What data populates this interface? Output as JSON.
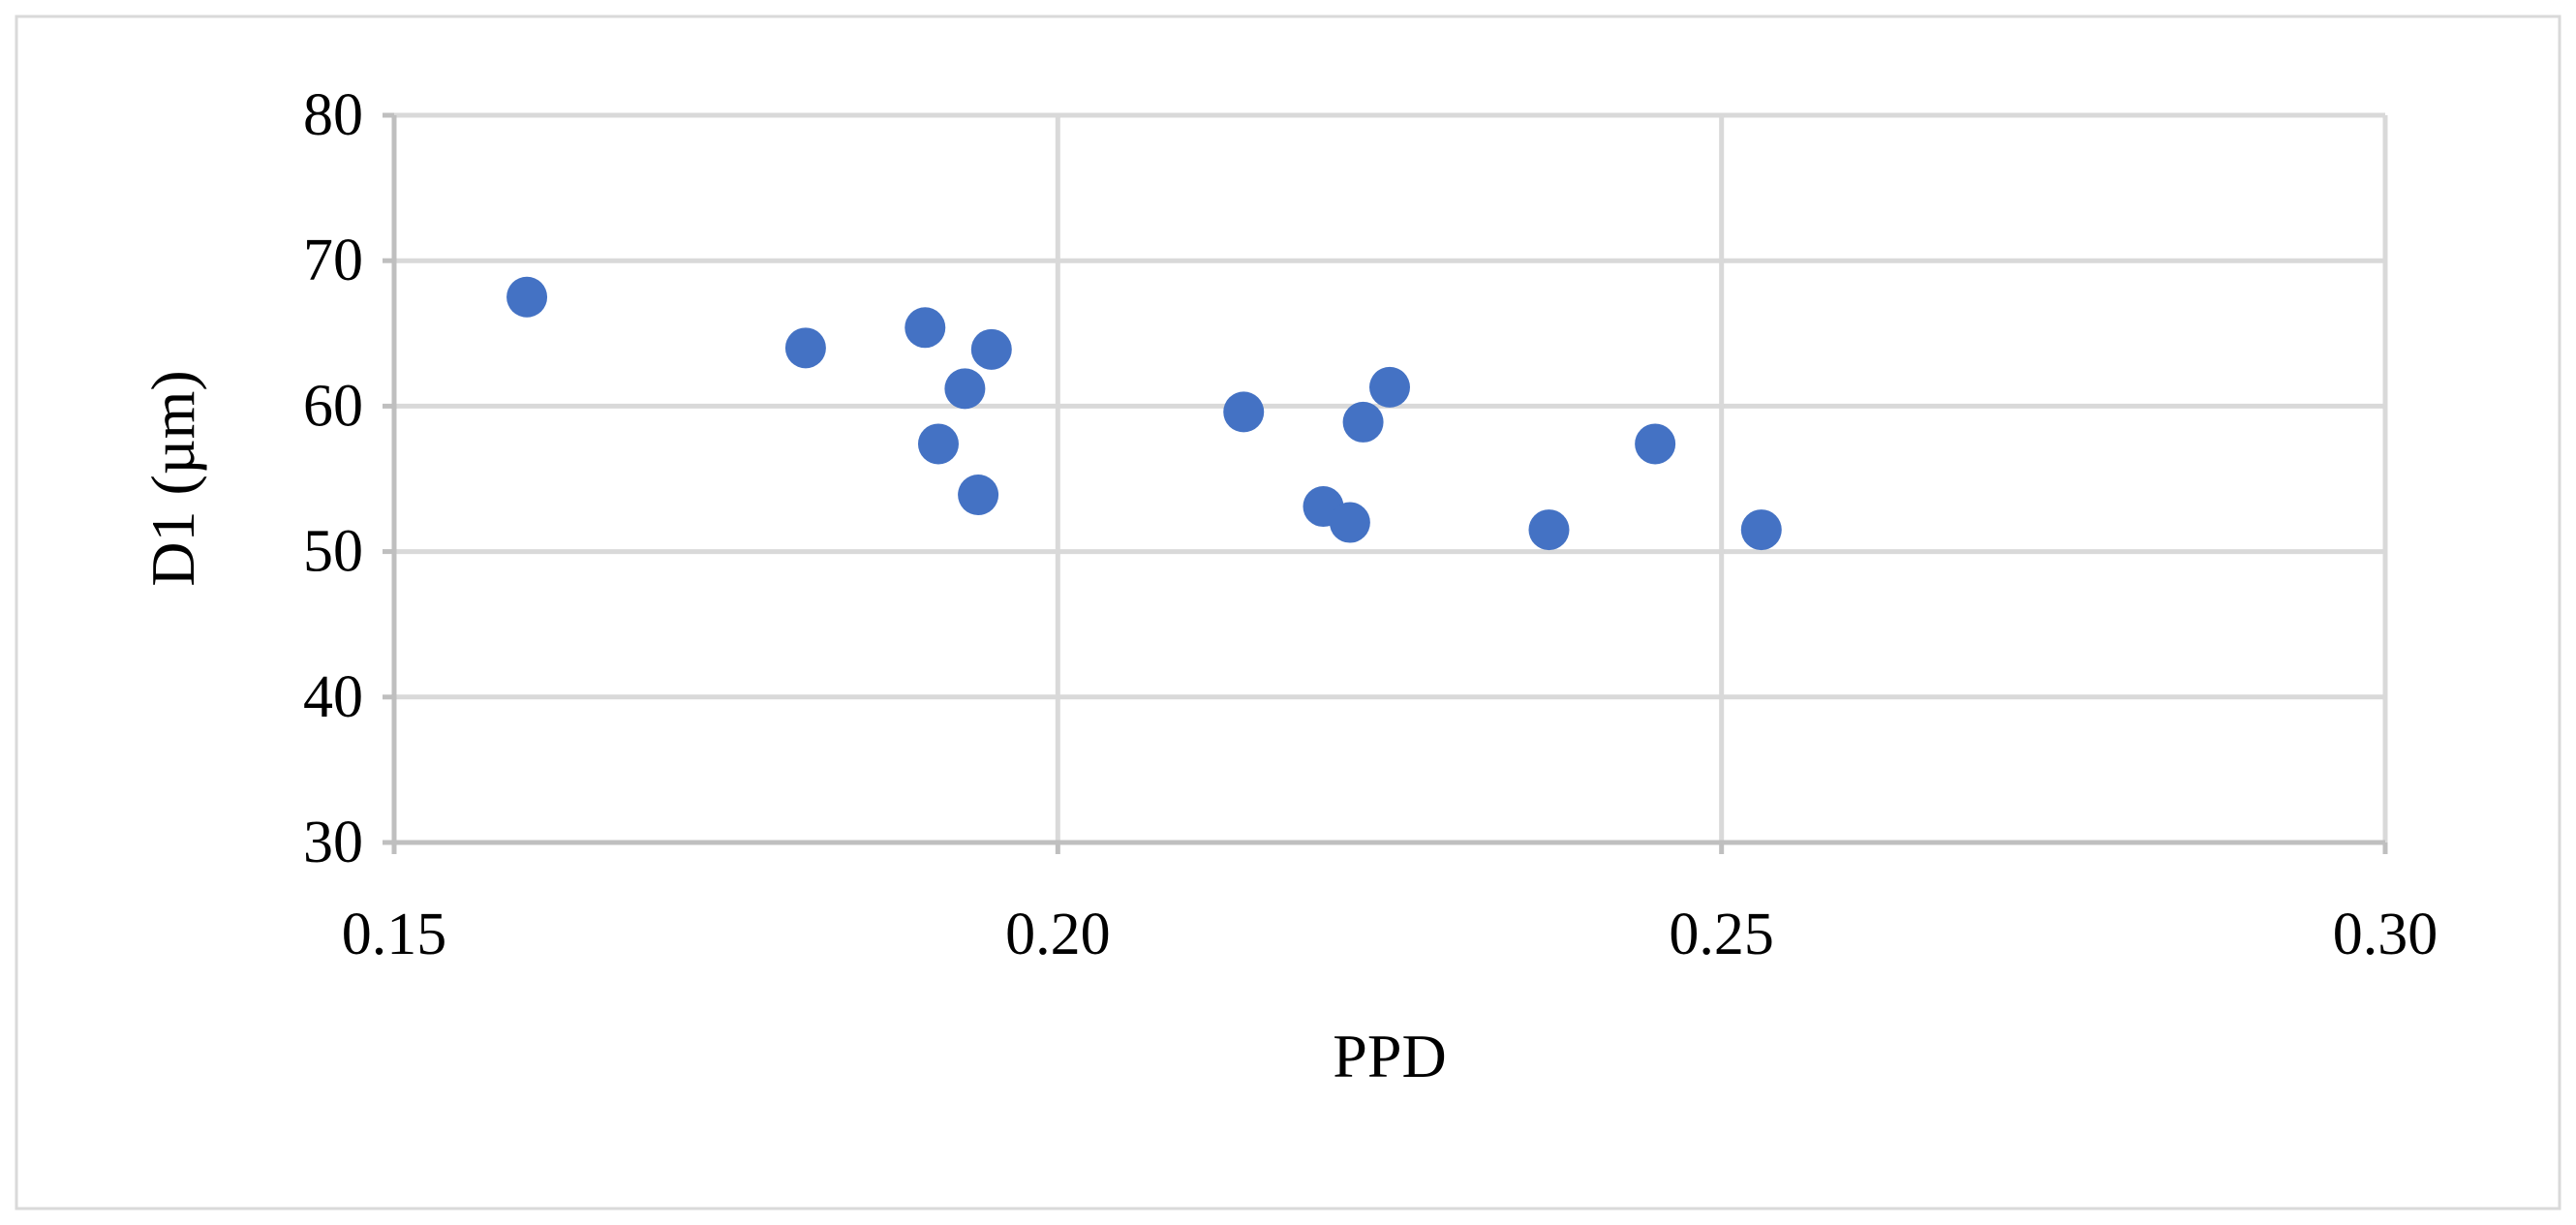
{
  "chart_data": {
    "type": "scatter",
    "title": "",
    "xlabel": "PPD",
    "ylabel": "D1 (µm)",
    "xlim": [
      0.15,
      0.3
    ],
    "ylim": [
      30,
      80
    ],
    "xticks": [
      "0.15",
      "0.20",
      "0.25",
      "0.30"
    ],
    "yticks": [
      "30",
      "40",
      "50",
      "60",
      "70",
      "80"
    ],
    "grid": true,
    "legend": "none",
    "marker_color": "#4472C4",
    "gridline_color": "#D9D9D9",
    "series": [
      {
        "x": [
          0.16,
          0.181,
          0.19,
          0.195,
          0.193,
          0.191,
          0.194,
          0.214,
          0.225,
          0.223,
          0.22,
          0.222,
          0.237,
          0.245,
          0.253
        ],
        "y": [
          67.5,
          64.0,
          65.4,
          63.9,
          61.2,
          57.4,
          53.9,
          59.6,
          61.3,
          58.9,
          53.1,
          52.0,
          51.5,
          57.4,
          51.5
        ]
      }
    ]
  }
}
